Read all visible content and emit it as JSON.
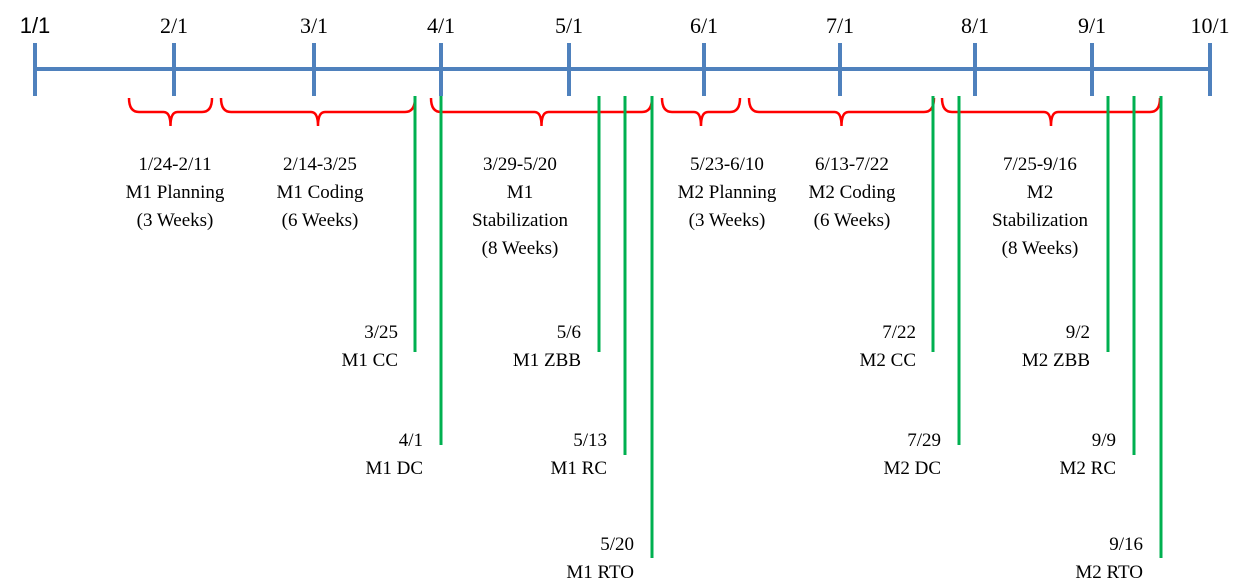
{
  "axis": {
    "ticks": [
      "1/1",
      "2/1",
      "3/1",
      "4/1",
      "5/1",
      "6/1",
      "7/1",
      "8/1",
      "9/1",
      "10/1"
    ],
    "line_color": "#4F81BD"
  },
  "colors": {
    "brace": "#FF0000",
    "milestone": "#00B050",
    "text": "#000000"
  },
  "phases": [
    {
      "lines": [
        "1/24-2/11",
        "M1 Planning",
        "(3 Weeks)"
      ]
    },
    {
      "lines": [
        "2/14-3/25",
        "M1 Coding",
        "(6 Weeks)"
      ]
    },
    {
      "lines": [
        "3/29-5/20",
        "M1",
        "Stabilization",
        "(8 Weeks)"
      ]
    },
    {
      "lines": [
        "5/23-6/10",
        "M2 Planning",
        "(3 Weeks)"
      ]
    },
    {
      "lines": [
        "6/13-7/22",
        "M2 Coding",
        "(6 Weeks)"
      ]
    },
    {
      "lines": [
        "7/25-9/16",
        "M2",
        "Stabilization",
        "(8 Weeks)"
      ]
    }
  ],
  "milestones": [
    {
      "date": "3/25",
      "name": "M1 CC"
    },
    {
      "date": "4/1",
      "name": "M1 DC"
    },
    {
      "date": "5/6",
      "name": "M1 ZBB"
    },
    {
      "date": "5/13",
      "name": "M1 RC"
    },
    {
      "date": "5/20",
      "name": "M1 RTO"
    },
    {
      "date": "7/22",
      "name": "M2 CC"
    },
    {
      "date": "7/29",
      "name": "M2 DC"
    },
    {
      "date": "9/2",
      "name": "M2 ZBB"
    },
    {
      "date": "9/9",
      "name": "M2 RC"
    },
    {
      "date": "9/16",
      "name": "M2 RTO"
    }
  ]
}
